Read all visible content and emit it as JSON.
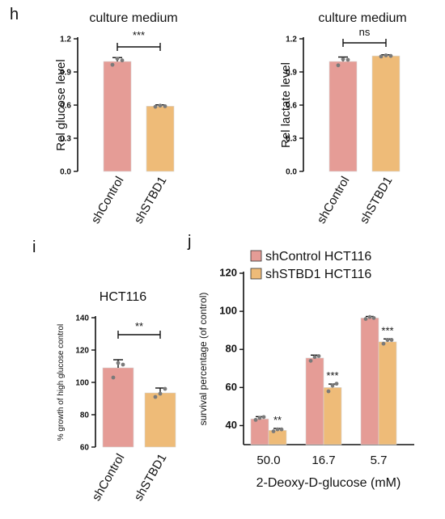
{
  "panel_letters": {
    "h": "h",
    "i": "i",
    "j": "j"
  },
  "colors": {
    "control": "#e59c96",
    "stbd1": "#eebb78",
    "axis": "#111111",
    "dot": "#7a7a7a"
  },
  "chart_data": [
    {
      "id": "h1",
      "type": "bar",
      "title": "culture medium",
      "ylabel": "Rel glucose level",
      "categories": [
        "shControl",
        "shSTBD1"
      ],
      "values": [
        0.995,
        0.59
      ],
      "errors": [
        0.035,
        0.012
      ],
      "points": [
        [
          0.965,
          1.02,
          1.005
        ],
        [
          0.585,
          0.595,
          0.59
        ]
      ],
      "ylim": [
        0,
        1.2
      ],
      "yticks": [
        "0.0",
        "0.3",
        "0.6",
        "0.9",
        "1.2"
      ],
      "significance": [
        "***"
      ]
    },
    {
      "id": "h2",
      "type": "bar",
      "title": "culture medium",
      "ylabel": "Rel lactate level",
      "categories": [
        "shControl",
        "shSTBD1"
      ],
      "values": [
        0.995,
        1.045
      ],
      "errors": [
        0.04,
        0.01
      ],
      "points": [
        [
          0.96,
          1.015,
          1.01
        ],
        [
          1.04,
          1.05,
          1.045
        ]
      ],
      "ylim": [
        0,
        1.2
      ],
      "yticks": [
        "0.0",
        "0.3",
        "0.6",
        "0.9",
        "1.2"
      ],
      "significance": [
        "ns"
      ]
    },
    {
      "id": "i",
      "type": "bar",
      "title": "HCT116",
      "ylabel": "% growth of high glucose control",
      "categories": [
        "shControl",
        "shSTBD1"
      ],
      "values": [
        109,
        93.5
      ],
      "errors": [
        5,
        3
      ],
      "points": [
        [
          103,
          112,
          111
        ],
        [
          91,
          93,
          96
        ]
      ],
      "ylim": [
        60,
        140
      ],
      "yticks": [
        "60",
        "80",
        "100",
        "120",
        "140"
      ],
      "significance": [
        "**"
      ]
    },
    {
      "id": "j",
      "type": "bar",
      "xlabel": "2-Deoxy-D-glucose (mM)",
      "ylabel": "survival percentage (of control)",
      "categories": [
        "50.0",
        "16.7",
        "5.7"
      ],
      "series": [
        {
          "name": "shControl HCT116",
          "values": [
            43.5,
            75.5,
            96.5
          ],
          "errors": [
            1.2,
            1.5,
            0.8
          ],
          "points": [
            [
              43,
              44,
              44.5
            ],
            [
              74,
              76,
              76.5
            ],
            [
              96,
              97,
              96.5
            ]
          ]
        },
        {
          "name": "shSTBD1 HCT116",
          "values": [
            37.5,
            60,
            84
          ],
          "errors": [
            1.0,
            1.8,
            1.5
          ],
          "points": [
            [
              37,
              38,
              38
            ],
            [
              58,
              61,
              62
            ],
            [
              83,
              85,
              85
            ]
          ]
        }
      ],
      "ylim": [
        30,
        120
      ],
      "yticks": [
        "40",
        "60",
        "80",
        "100",
        "120"
      ],
      "significance": [
        "**",
        "***",
        "***"
      ],
      "legend": "top-left"
    }
  ]
}
